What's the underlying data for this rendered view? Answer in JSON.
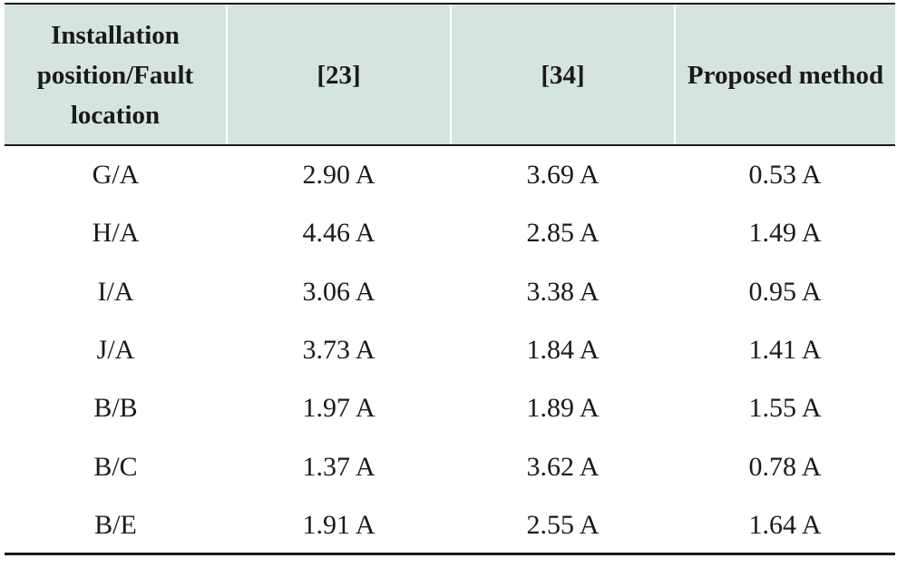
{
  "table": {
    "headers": [
      "Installation position/Fault location",
      "[23]",
      "[34]",
      "Proposed method"
    ],
    "rows": [
      [
        "G/A",
        "2.90 A",
        "3.69 A",
        "0.53 A"
      ],
      [
        "H/A",
        "4.46 A",
        "2.85 A",
        "1.49 A"
      ],
      [
        "I/A",
        "3.06 A",
        "3.38 A",
        "0.95 A"
      ],
      [
        "J/A",
        "3.73 A",
        "1.84 A",
        "1.41 A"
      ],
      [
        "B/B",
        "1.97 A",
        "1.89 A",
        "1.55 A"
      ],
      [
        "B/C",
        "1.37 A",
        "3.62 A",
        "0.78 A"
      ],
      [
        "B/E",
        "1.91 A",
        "2.55 A",
        "1.64 A"
      ]
    ]
  }
}
